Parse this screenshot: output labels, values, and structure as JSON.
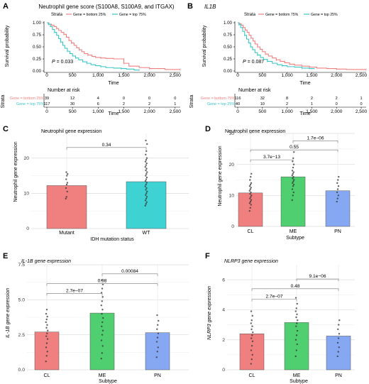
{
  "panels": {
    "A": {
      "letter": "A",
      "title": "Neutrophil gene score (S100A8, S100A9, and ITGAX)",
      "strata_label": "Strata",
      "legend": [
        "Gene = bottom 25%",
        "Gene = top 75%"
      ],
      "pvalue": "P = 0.033",
      "ylabel": "Survival probability",
      "xlabel": "Time",
      "risk_title": "Number at risk",
      "risk_ylabel": "Strata",
      "risk_xlabel": "Time"
    },
    "B": {
      "letter": "B",
      "title": "IL1B",
      "strata_label": "Strata",
      "legend": [
        "Gene = bottom 75%",
        "Gene = top 25%"
      ],
      "pvalue": "P = 0.087",
      "ylabel": "Survival probability",
      "xlabel": "Time",
      "risk_title": "Number at risk",
      "risk_ylabel": "Strata",
      "risk_xlabel": "Time"
    },
    "C": {
      "letter": "C",
      "title": "Neutrophil gene expression",
      "ylabel": "Neutrophil gene expression",
      "xlabel": "IDH mutation status"
    },
    "D": {
      "letter": "D",
      "title": "Neutrophil gene expression",
      "ylabel": "Neutrophil gene expression",
      "xlabel": "Subtype"
    },
    "E": {
      "letter": "E",
      "title": "IL-1B gene expression",
      "ylabel": "IL-1B gene expression",
      "xlabel": "Subtype"
    },
    "F": {
      "letter": "F",
      "title": "NLRP3 gene expression",
      "ylabel": "NLRP3 gene expression",
      "xlabel": "Subtype"
    }
  },
  "colors": {
    "red": "#f08080",
    "teal": "#3cc6c8",
    "green": "#4fcf6f",
    "blue": "#86a8f2",
    "cturq": "#3fd2d2"
  },
  "chart_data": [
    {
      "panel": "A",
      "type": "line",
      "xlim": [
        0,
        2600
      ],
      "ylim": [
        0,
        1
      ],
      "xticks": [
        "0",
        "500",
        "1,000",
        "1,500",
        "2,000",
        "2,500"
      ],
      "yticks": [
        "0.00",
        "0.25",
        "0.50",
        "0.75",
        "1.00"
      ],
      "series": [
        {
          "name": "Gene = bottom 25%",
          "color": "#f08080",
          "steps": [
            [
              0,
              1
            ],
            [
              40,
              0.97
            ],
            [
              90,
              0.95
            ],
            [
              140,
              0.92
            ],
            [
              190,
              0.88
            ],
            [
              230,
              0.84
            ],
            [
              280,
              0.8
            ],
            [
              330,
              0.76
            ],
            [
              380,
              0.7
            ],
            [
              430,
              0.63
            ],
            [
              480,
              0.58
            ],
            [
              530,
              0.53
            ],
            [
              580,
              0.48
            ],
            [
              630,
              0.44
            ],
            [
              680,
              0.4
            ],
            [
              730,
              0.36
            ],
            [
              800,
              0.33
            ],
            [
              880,
              0.3
            ],
            [
              950,
              0.28
            ],
            [
              1050,
              0.27
            ],
            [
              1150,
              0.26
            ],
            [
              1300,
              0.25
            ],
            [
              1500,
              0.16
            ],
            [
              1600,
              0.1
            ],
            [
              1800,
              0.07
            ],
            [
              2000,
              0.05
            ],
            [
              2300,
              0.03
            ],
            [
              2500,
              0.03
            ],
            [
              2600,
              0.03
            ]
          ]
        },
        {
          "name": "Gene = top 75%",
          "color": "#3cc6c8",
          "steps": [
            [
              0,
              1
            ],
            [
              30,
              0.97
            ],
            [
              70,
              0.92
            ],
            [
              110,
              0.86
            ],
            [
              150,
              0.8
            ],
            [
              190,
              0.74
            ],
            [
              230,
              0.67
            ],
            [
              270,
              0.6
            ],
            [
              310,
              0.53
            ],
            [
              350,
              0.47
            ],
            [
              400,
              0.41
            ],
            [
              450,
              0.36
            ],
            [
              500,
              0.31
            ],
            [
              560,
              0.27
            ],
            [
              620,
              0.23
            ],
            [
              700,
              0.19
            ],
            [
              780,
              0.16
            ],
            [
              860,
              0.13
            ],
            [
              950,
              0.11
            ],
            [
              1050,
              0.09
            ],
            [
              1150,
              0.07
            ],
            [
              1300,
              0.06
            ],
            [
              1450,
              0.05
            ],
            [
              1550,
              0.04
            ],
            [
              1700,
              0.02
            ],
            [
              1800,
              0.02
            ]
          ]
        }
      ],
      "risk_xticks": [
        "0",
        "500",
        "1,000",
        "1,500",
        "2,000",
        "2,500"
      ],
      "risk": [
        {
          "label": "Gene = bottom 25%",
          "color": "#f08080",
          "values": [
            "39",
            "12",
            "4",
            "0",
            "0",
            "0"
          ]
        },
        {
          "label": "Gene = top 75%",
          "color": "#3cc6c8",
          "values": [
            "117",
            "30",
            "6",
            "2",
            "2",
            "1"
          ]
        }
      ]
    },
    {
      "panel": "B",
      "type": "line",
      "xlim": [
        0,
        2600
      ],
      "ylim": [
        0,
        1
      ],
      "xticks": [
        "0",
        "500",
        "1,000",
        "1,500",
        "2,000",
        "2,500"
      ],
      "yticks": [
        "0.00",
        "0.25",
        "0.50",
        "0.75",
        "1.00"
      ],
      "series": [
        {
          "name": "Gene = bottom 75%",
          "color": "#f08080",
          "steps": [
            [
              0,
              1
            ],
            [
              30,
              0.98
            ],
            [
              70,
              0.95
            ],
            [
              110,
              0.9
            ],
            [
              150,
              0.85
            ],
            [
              190,
              0.8
            ],
            [
              230,
              0.74
            ],
            [
              270,
              0.68
            ],
            [
              310,
              0.62
            ],
            [
              350,
              0.56
            ],
            [
              400,
              0.5
            ],
            [
              450,
              0.45
            ],
            [
              500,
              0.4
            ],
            [
              560,
              0.35
            ],
            [
              620,
              0.31
            ],
            [
              700,
              0.27
            ],
            [
              780,
              0.23
            ],
            [
              860,
              0.2
            ],
            [
              950,
              0.17
            ],
            [
              1050,
              0.14
            ],
            [
              1150,
              0.12
            ],
            [
              1300,
              0.1
            ],
            [
              1450,
              0.08
            ],
            [
              1600,
              0.06
            ],
            [
              1800,
              0.05
            ],
            [
              2000,
              0.04
            ],
            [
              2200,
              0.03
            ],
            [
              2400,
              0.03
            ],
            [
              2600,
              0.03
            ]
          ]
        },
        {
          "name": "Gene = top 25%",
          "color": "#3cc6c8",
          "steps": [
            [
              0,
              1
            ],
            [
              25,
              0.96
            ],
            [
              60,
              0.9
            ],
            [
              100,
              0.82
            ],
            [
              140,
              0.74
            ],
            [
              180,
              0.66
            ],
            [
              220,
              0.58
            ],
            [
              260,
              0.5
            ],
            [
              300,
              0.44
            ],
            [
              350,
              0.38
            ],
            [
              400,
              0.33
            ],
            [
              460,
              0.28
            ],
            [
              520,
              0.24
            ],
            [
              600,
              0.2
            ],
            [
              700,
              0.16
            ],
            [
              800,
              0.13
            ],
            [
              900,
              0.11
            ],
            [
              1000,
              0.09
            ],
            [
              1150,
              0.08
            ],
            [
              1300,
              0.06
            ],
            [
              1450,
              0.05
            ],
            [
              1550,
              0.04
            ]
          ]
        }
      ],
      "risk_xticks": [
        "0",
        "500",
        "1,000",
        "1,500",
        "2,000",
        "2,500"
      ],
      "risk": [
        {
          "label": "Gene = bottom 75%",
          "color": "#f08080",
          "values": [
            "116",
            "32",
            "8",
            "2",
            "2",
            "1"
          ]
        },
        {
          "label": "Gene = top 25%",
          "color": "#3cc6c8",
          "values": [
            "40",
            "10",
            "2",
            "1",
            "0",
            "0"
          ]
        }
      ]
    },
    {
      "panel": "C",
      "type": "bar",
      "categories": [
        "Mutant",
        "WT"
      ],
      "values": [
        12.2,
        13.3
      ],
      "colors": [
        "#f08080",
        "#3fd2d2"
      ],
      "ylim": [
        0,
        27
      ],
      "yticks": [
        0,
        10,
        20
      ],
      "points": [
        [
          8.5,
          9.0,
          10.5,
          11.5,
          12.5,
          13.0,
          14.0,
          15.0,
          15.5,
          16.0
        ],
        [
          6.5,
          7.0,
          7.5,
          8.0,
          8.5,
          9.0,
          9.5,
          10.0,
          10.5,
          11.0,
          11.5,
          12.0,
          12.5,
          13.0,
          13.5,
          14.0,
          14.5,
          15.0,
          15.5,
          16.0,
          16.5,
          17.0,
          17.5,
          18.0,
          18.5,
          19.0,
          19.5,
          20.0,
          21.0,
          22.0,
          24.0,
          25.0
        ]
      ],
      "brackets": [
        {
          "from": 0,
          "to": 1,
          "label": "0.34",
          "y": 23.0
        }
      ]
    },
    {
      "panel": "D",
      "type": "bar",
      "categories": [
        "CL",
        "ME",
        "PN"
      ],
      "values": [
        10.8,
        16.0,
        11.5
      ],
      "colors": [
        "#f08080",
        "#4fcf6f",
        "#86a8f2"
      ],
      "ylim": [
        0,
        30
      ],
      "yticks": [
        0,
        10,
        20,
        30
      ],
      "points": [
        [
          5.0,
          6.0,
          7.0,
          7.5,
          8.0,
          8.5,
          9.0,
          9.5,
          10.0,
          10.5,
          11.0,
          11.5,
          12.0,
          12.5,
          13.0,
          13.5,
          14.0,
          15.0,
          16.0,
          17.0
        ],
        [
          8.5,
          10.0,
          11.0,
          12.0,
          13.0,
          13.5,
          14.0,
          14.5,
          15.0,
          15.5,
          16.0,
          16.5,
          17.0,
          17.5,
          18.0,
          19.0,
          20.0,
          21.0,
          22.0,
          24.0
        ],
        [
          8.0,
          9.0,
          10.0,
          11.0,
          12.0,
          13.0,
          14.0,
          15.0,
          16.0
        ]
      ],
      "brackets": [
        {
          "from": 0,
          "to": 1,
          "label": "3.7e−13",
          "y": 21.5
        },
        {
          "from": 0,
          "to": 2,
          "label": "0.55",
          "y": 24.7
        },
        {
          "from": 1,
          "to": 2,
          "label": "1.7e−06",
          "y": 27.6
        }
      ]
    },
    {
      "panel": "E",
      "type": "bar",
      "categories": [
        "CL",
        "ME",
        "PN"
      ],
      "values": [
        2.7,
        4.05,
        2.65
      ],
      "colors": [
        "#f08080",
        "#4fcf6f",
        "#86a8f2"
      ],
      "ylim": [
        0,
        7.5
      ],
      "yticks": [
        0.0,
        2.5,
        5.0,
        7.5
      ],
      "points": [
        [
          0.6,
          1.0,
          1.3,
          1.6,
          1.9,
          2.2,
          2.4,
          2.6,
          2.8,
          3.0,
          3.2,
          3.4,
          3.6,
          3.8,
          4.0,
          4.3
        ],
        [
          0.8,
          1.2,
          1.7,
          2.1,
          2.5,
          2.8,
          3.1,
          3.4,
          3.7,
          4.0,
          4.3,
          4.6,
          4.9,
          5.2,
          5.5,
          5.8,
          6.1,
          6.4
        ],
        [
          0.9,
          1.3,
          1.6,
          2.0,
          2.3,
          2.6,
          2.9,
          3.2,
          3.5,
          3.9
        ]
      ],
      "brackets": [
        {
          "from": 0,
          "to": 1,
          "label": "2.7e−07",
          "y": 5.45
        },
        {
          "from": 0,
          "to": 2,
          "label": "0.98",
          "y": 6.15
        },
        {
          "from": 1,
          "to": 2,
          "label": "0.00084",
          "y": 6.85
        }
      ]
    },
    {
      "panel": "F",
      "type": "bar",
      "categories": [
        "CL",
        "ME",
        "PN"
      ],
      "values": [
        2.4,
        3.15,
        2.25
      ],
      "colors": [
        "#f08080",
        "#4fcf6f",
        "#86a8f2"
      ],
      "ylim": [
        0,
        7
      ],
      "yticks": [
        0,
        2,
        4,
        6
      ],
      "points": [
        [
          0.4,
          0.7,
          1.0,
          1.3,
          1.6,
          1.9,
          2.1,
          2.3,
          2.5,
          2.7,
          2.9,
          3.1,
          3.3,
          3.6,
          3.9
        ],
        [
          0.9,
          1.3,
          1.7,
          2.0,
          2.3,
          2.6,
          2.9,
          3.1,
          3.3,
          3.5,
          3.7,
          3.9,
          4.1,
          4.4,
          4.8
        ],
        [
          0.9,
          1.2,
          1.5,
          1.8,
          2.1,
          2.4,
          2.7,
          3.0,
          3.3
        ]
      ],
      "brackets": [
        {
          "from": 0,
          "to": 1,
          "label": "2.7e−07",
          "y": 4.7
        },
        {
          "from": 0,
          "to": 2,
          "label": "0.48",
          "y": 5.4
        },
        {
          "from": 1,
          "to": 2,
          "label": "9.1e−06",
          "y": 6.05
        }
      ]
    }
  ]
}
